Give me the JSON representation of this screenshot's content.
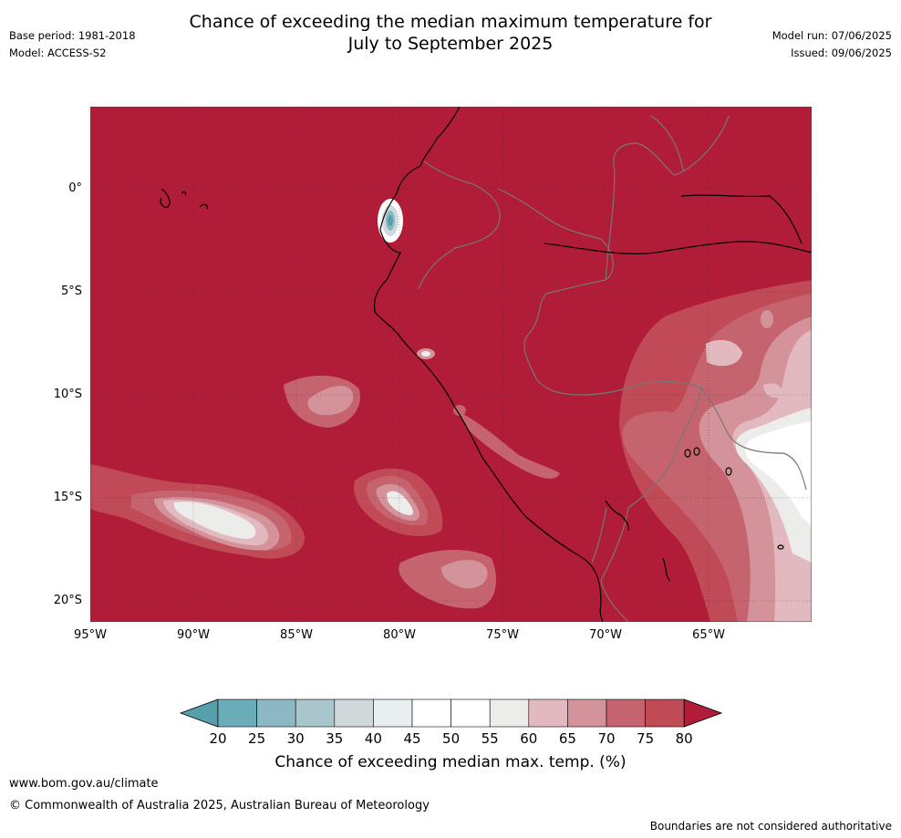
{
  "header": {
    "title_line1": "Chance of exceeding the median maximum temperature for",
    "title_line2": "July to September 2025",
    "base_period": "Base period: 1981-2018",
    "model": "Model: ACCESS-S2",
    "model_run": "Model run: 07/06/2025",
    "issued": "Issued: 09/06/2025"
  },
  "map": {
    "lat_labels": [
      "0°",
      "5°S",
      "10°S",
      "15°S",
      "20°S"
    ],
    "lon_labels": [
      "95°W",
      "90°W",
      "85°W",
      "80°W",
      "75°W",
      "70°W",
      "65°W"
    ],
    "extent": {
      "lon": [
        -95,
        -60
      ],
      "lat": [
        -21,
        4
      ]
    },
    "grid": true,
    "colors": {
      "dominant": "#b11c38",
      "land_outline": "#000000",
      "border_outline": "#777777"
    }
  },
  "colorbar": {
    "ticks": [
      "20",
      "25",
      "30",
      "35",
      "40",
      "45",
      "50",
      "55",
      "60",
      "65",
      "70",
      "75",
      "80"
    ],
    "colors": [
      "#6aadb8",
      "#8bb8c3",
      "#a9c6cc",
      "#cfd8db",
      "#e9eef0",
      "#ffffff",
      "#ffffff",
      "#ececeb",
      "#e2b9be",
      "#d4939a",
      "#c5646f",
      "#c04a55"
    ],
    "under_color": "#55a0ab",
    "over_color": "#b11c38",
    "label": "Chance of exceeding median max. temp. (%)"
  },
  "footer": {
    "site": "www.bom.gov.au/climate",
    "copyright": "© Commonwealth of Australia 2025, Australian Bureau of Meteorology",
    "disclaimer": "Boundaries are not considered authoritative"
  }
}
